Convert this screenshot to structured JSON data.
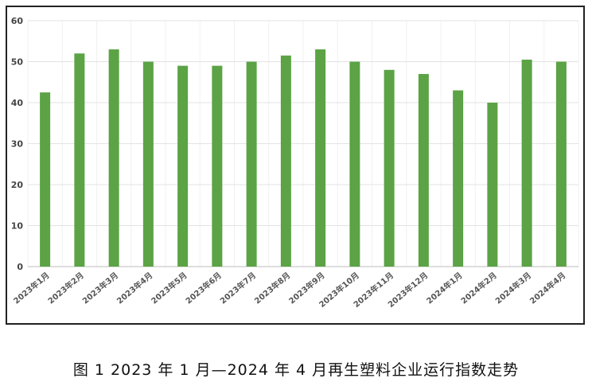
{
  "caption": "图 1  2023 年 1 月—2024 年 4 月再生塑料企业运行指数走势",
  "chart_data": {
    "type": "bar",
    "title": "",
    "xlabel": "",
    "ylabel": "",
    "ylim": [
      0,
      60
    ],
    "yticks": [
      0,
      10,
      20,
      30,
      40,
      50,
      60
    ],
    "grid": true,
    "bar_color": "#5ba345",
    "categories": [
      "2023年1月",
      "2023年2月",
      "2023年3月",
      "2023年4月",
      "2023年5月",
      "2023年6月",
      "2023年7月",
      "2023年8月",
      "2023年9月",
      "2023年10月",
      "2023年11月",
      "2023年12月",
      "2024年1月",
      "2024年2月",
      "2024年3月",
      "2024年4月"
    ],
    "values": [
      42.5,
      52,
      53,
      50,
      49,
      49,
      50,
      51.5,
      53,
      50,
      48,
      47,
      43,
      40,
      50.5,
      50
    ]
  }
}
